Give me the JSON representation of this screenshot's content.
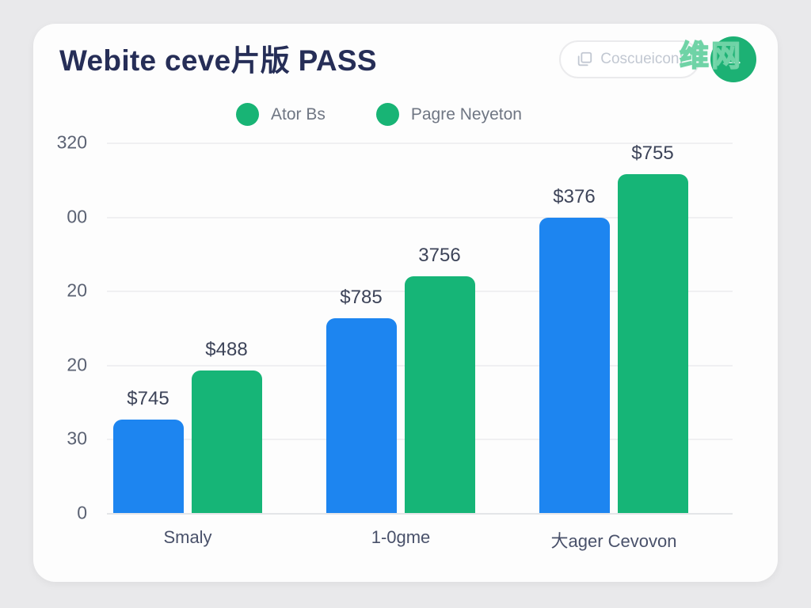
{
  "page": {
    "watermark": "维网"
  },
  "header": {
    "title": "Webite ceve片版 PASS",
    "action_button": {
      "label": "Coscueicon:",
      "icon": "clipboard-icon"
    },
    "fab": {
      "icon": "arrow-right-icon",
      "glyph": "→"
    }
  },
  "legend": {
    "items": [
      {
        "label": "Ator Bs",
        "color": "#18b475"
      },
      {
        "label": "Pagre Neyeton",
        "color": "#18b475"
      }
    ]
  },
  "chart_data": {
    "type": "bar",
    "title": "Webite ceve片版 PASS",
    "categories": [
      "Smaly",
      "1-0gme",
      "大ager Cevovon"
    ],
    "series": [
      {
        "name": "Ator Bs",
        "color": "#1d85f0",
        "value_labels": [
          "$745",
          "$785",
          "$376"
        ],
        "height_pct": [
          25.2,
          52.6,
          79.7
        ]
      },
      {
        "name": "Pagre Neyeton",
        "color": "#16b577",
        "value_labels": [
          "$488",
          "3756",
          "$755"
        ],
        "height_pct": [
          38.5,
          63.9,
          91.5
        ]
      }
    ],
    "y_ticks": [
      "320",
      "00",
      "20",
      "20",
      "30",
      "0"
    ],
    "grid": true,
    "legend_position": "top",
    "colors": {
      "blue": "#1d85f0",
      "green": "#16b577"
    }
  }
}
